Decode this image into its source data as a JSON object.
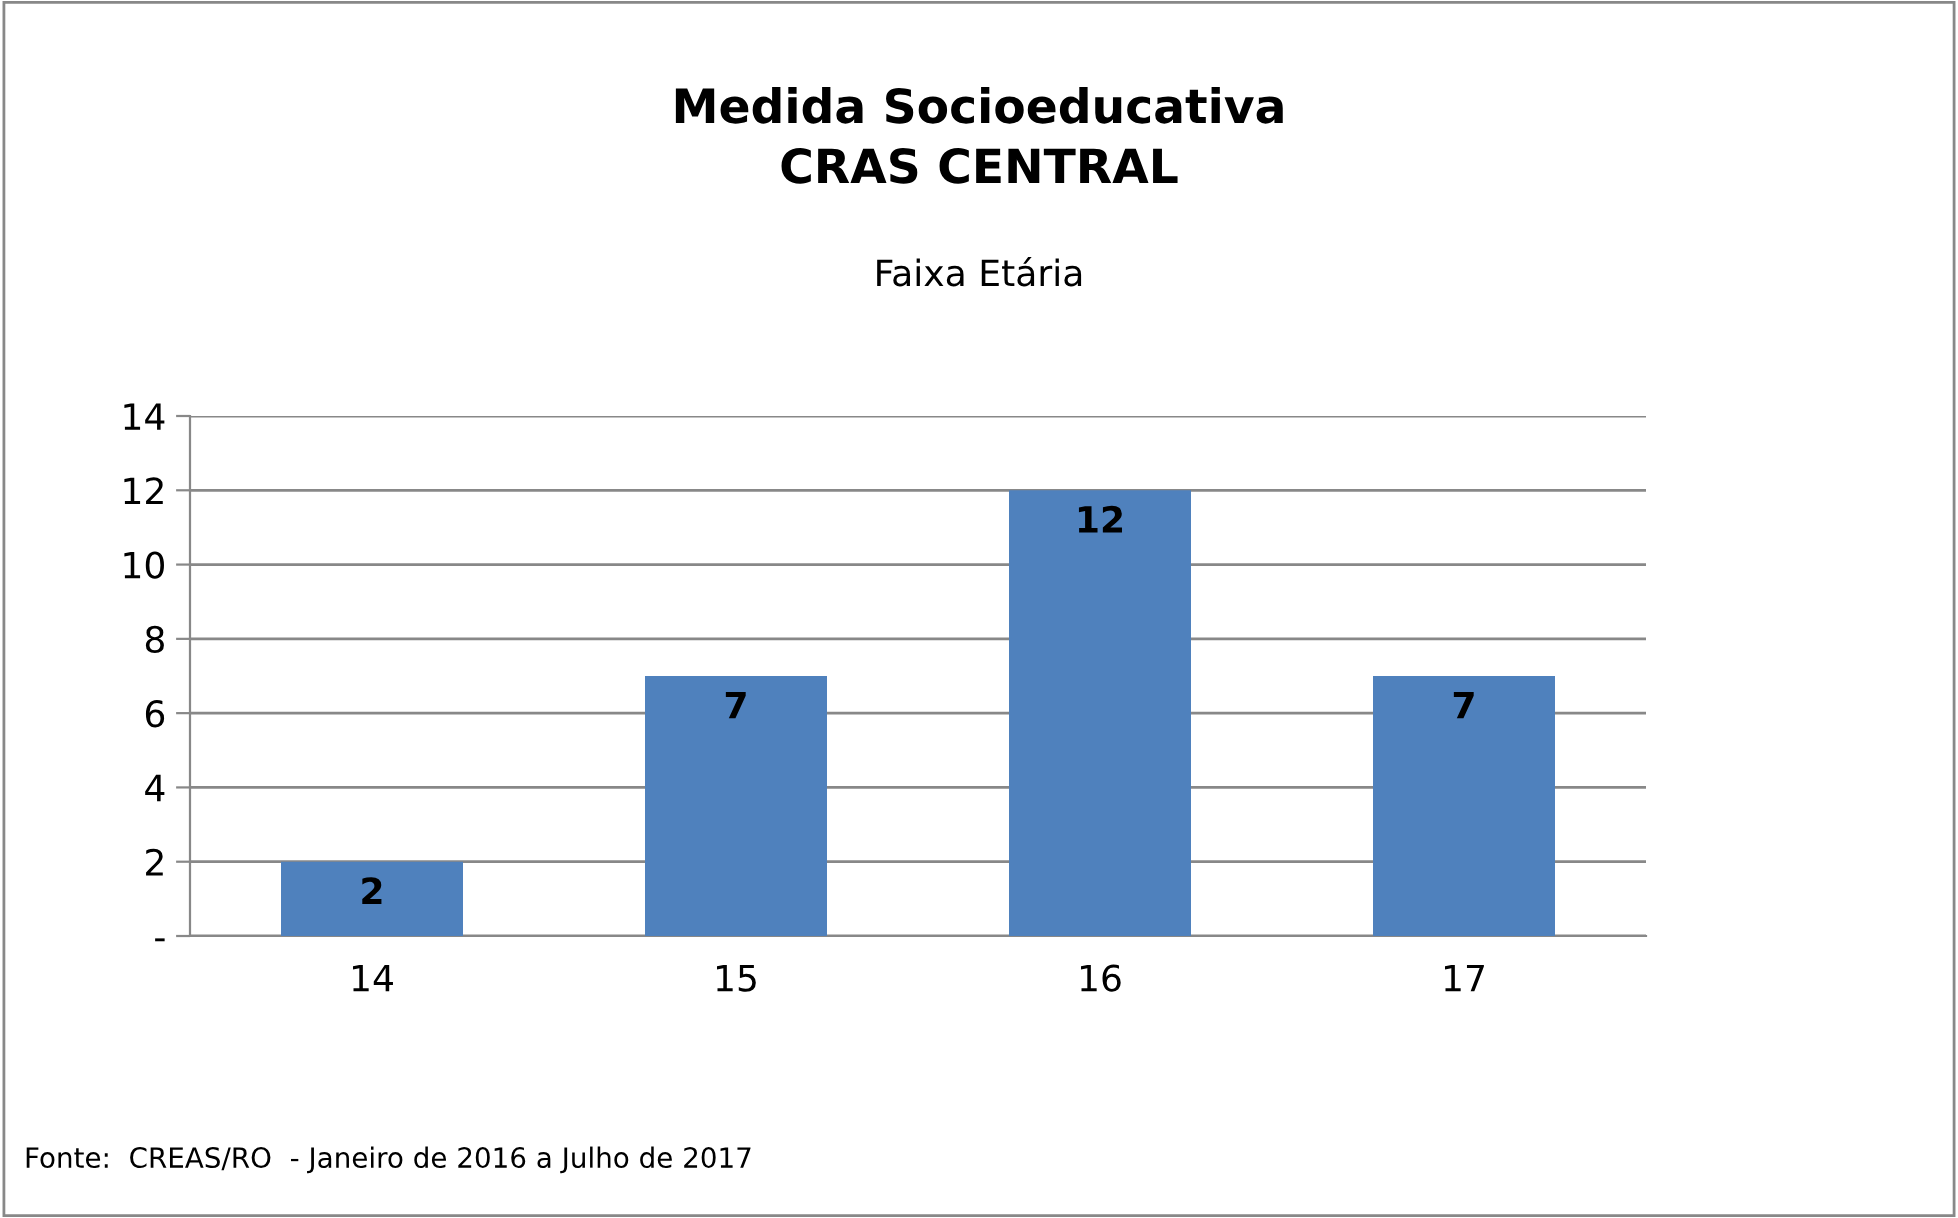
{
  "chart_data": {
    "type": "bar",
    "title": "Medida Socioeducativa\nCRAS CENTRAL",
    "subtitle": "Faixa Etária",
    "categories": [
      "14",
      "15",
      "16",
      "17"
    ],
    "values": [
      2,
      7,
      12,
      7
    ],
    "color": "#4f81bd",
    "ylim": [
      0,
      14
    ],
    "yticks": [
      {
        "value": 0,
        "label": "-"
      },
      2,
      4,
      6,
      8,
      10,
      12,
      14
    ],
    "grid": "y",
    "data_labels": true,
    "annotations": [
      "Fonte:  CREAS/RO  - Janeiro de 2016 a Julho de 2017"
    ]
  }
}
